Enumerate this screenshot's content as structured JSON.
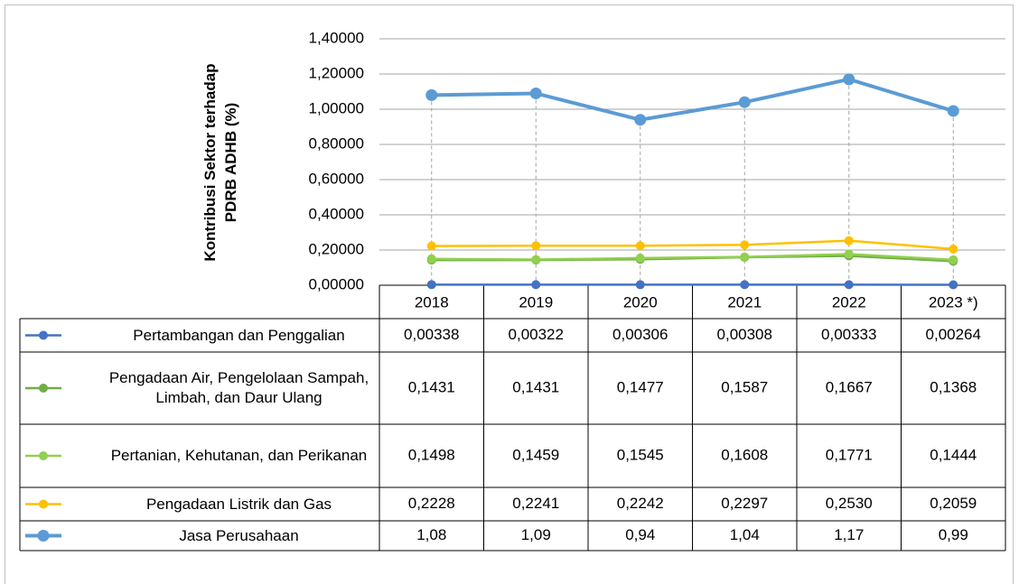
{
  "chart_data": {
    "type": "line",
    "y_label": [
      "Kontribusi Sektor terhadap",
      "PDRB ADHB (%)"
    ],
    "categories": [
      "2018",
      "2019",
      "2020",
      "2021",
      "2022",
      "2023 *)"
    ],
    "ylim": [
      0,
      1.4
    ],
    "yticks": [
      {
        "value": 0,
        "label": "0,00000"
      },
      {
        "value": 0.2,
        "label": "0,20000"
      },
      {
        "value": 0.4,
        "label": "0,40000"
      },
      {
        "value": 0.6,
        "label": "0,60000"
      },
      {
        "value": 0.8,
        "label": "0,80000"
      },
      {
        "value": 1.0,
        "label": "1,00000"
      },
      {
        "value": 1.2,
        "label": "1,20000"
      },
      {
        "value": 1.4,
        "label": "1,40000"
      }
    ],
    "grid": true,
    "series": [
      {
        "name": "Pertambangan dan Penggalian",
        "color": "#4472c4",
        "values": [
          0.00338,
          0.00322,
          0.00306,
          0.00308,
          0.00333,
          0.00264
        ],
        "value_labels": [
          "0,00338",
          "0,00322",
          "0,00306",
          "0,00308",
          "0,00333",
          "0,00264"
        ]
      },
      {
        "name": "Pengadaan Air, Pengelolaan Sampah, Limbah, dan Daur Ulang",
        "color": "#70ad47",
        "values": [
          0.1431,
          0.1431,
          0.1477,
          0.1587,
          0.1667,
          0.1368
        ],
        "value_labels": [
          "0,1431",
          "0,1431",
          "0,1477",
          "0,1587",
          "0,1667",
          "0,1368"
        ]
      },
      {
        "name": "Pertanian, Kehutanan, dan Perikanan",
        "color": "#92d050",
        "values": [
          0.1498,
          0.1459,
          0.1545,
          0.1608,
          0.1771,
          0.1444
        ],
        "value_labels": [
          "0,1498",
          "0,1459",
          "0,1545",
          "0,1608",
          "0,1771",
          "0,1444"
        ]
      },
      {
        "name": "Pengadaan Listrik dan Gas",
        "color": "#ffc000",
        "values": [
          0.2228,
          0.2241,
          0.2242,
          0.2297,
          0.253,
          0.2059
        ],
        "value_labels": [
          "0,2228",
          "0,2241",
          "0,2242",
          "0,2297",
          "0,2530",
          "0,2059"
        ]
      },
      {
        "name": "Jasa Perusahaan",
        "color": "#5b9bd5",
        "values": [
          1.08,
          1.09,
          0.94,
          1.04,
          1.17,
          0.99
        ],
        "value_labels": [
          "1,08",
          "1,09",
          "0,94",
          "1,04",
          "1,17",
          "0,99"
        ]
      }
    ]
  }
}
